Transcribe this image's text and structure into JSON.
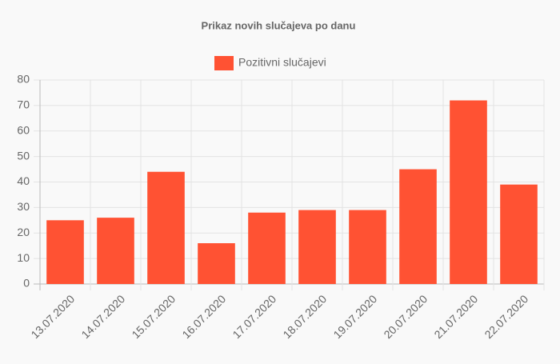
{
  "chart_data": {
    "type": "bar",
    "title": "Prikaz novih slučajeva po danu",
    "categories": [
      "13.07.2020",
      "14.07.2020",
      "15.07.2020",
      "16.07.2020",
      "17.07.2020",
      "18.07.2020",
      "19.07.2020",
      "20.07.2020",
      "21.07.2020",
      "22.07.2020"
    ],
    "series": [
      {
        "name": "Pozitivni slučajevi",
        "color": "#ff5233",
        "values": [
          25,
          26,
          44,
          16,
          28,
          29,
          29,
          45,
          72,
          39
        ]
      }
    ],
    "ylim": [
      0,
      80
    ],
    "yticks": [
      0,
      10,
      20,
      30,
      40,
      50,
      60,
      70,
      80
    ],
    "grid": true,
    "legend": "top"
  }
}
